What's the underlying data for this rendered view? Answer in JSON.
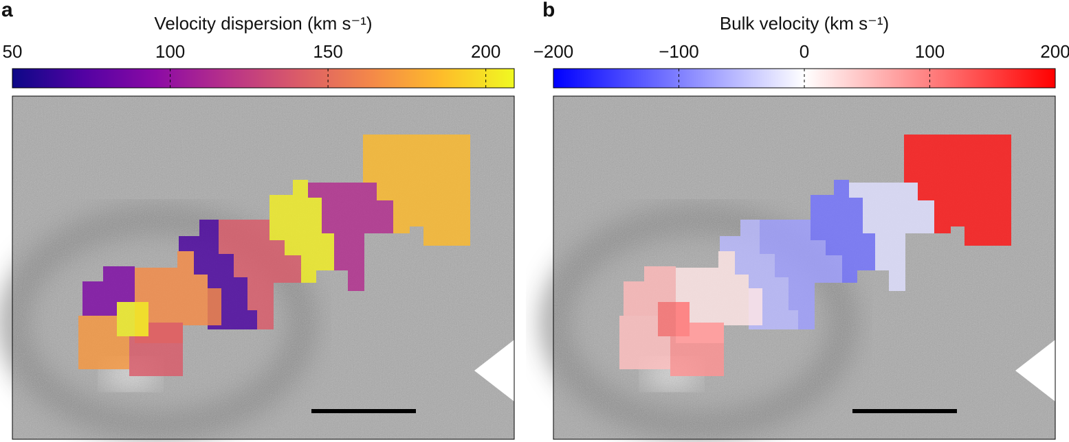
{
  "panels": [
    {
      "label": "a",
      "colorbar": {
        "title": "Velocity dispersion (km s⁻¹)",
        "lim": [
          50,
          209
        ],
        "ticks": [
          50,
          100,
          150,
          200
        ],
        "colors": [
          "#0d0887",
          "#5302a3",
          "#8b0aa5",
          "#b83289",
          "#db5c68",
          "#f48849",
          "#febd2a",
          "#f0f921"
        ]
      },
      "regions": [
        185,
        115,
        205,
        140,
        70,
        165,
        90,
        205,
        170,
        140
      ]
    },
    {
      "label": "b",
      "colorbar": {
        "title": "Bulk velocity (km s⁻¹)",
        "lim": [
          -200,
          200
        ],
        "ticks": [
          {
            "value": -200,
            "label": "−200"
          },
          {
            "value": -100,
            "label": "−100"
          },
          0,
          100,
          200
        ],
        "colors": [
          "#0000ff",
          "#ffffff",
          "#ff0000"
        ]
      },
      "regions": [
        185,
        -25,
        -110,
        -75,
        -55,
        20,
        55,
        110,
        50,
        85
      ]
    }
  ]
}
